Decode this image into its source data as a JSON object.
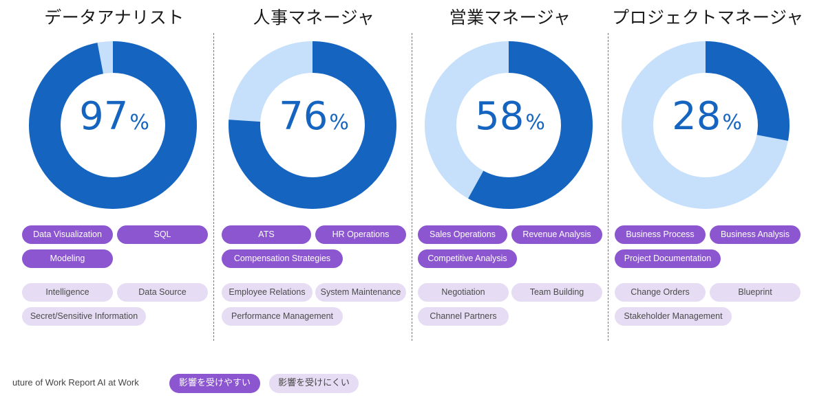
{
  "chart_data": [
    {
      "type": "pie",
      "title": "データアナリスト",
      "value": 97,
      "value_label": "97",
      "unit": "%",
      "colors": {
        "filled": "#1565c0",
        "remaining": "#c6dffa"
      },
      "skills_high": [
        "Data Visualization",
        "SQL",
        "Modeling"
      ],
      "skills_low": [
        "Intelligence",
        "Data Source",
        "Secret/Sensitive Information"
      ]
    },
    {
      "type": "pie",
      "title": "人事マネージャ",
      "value": 76,
      "value_label": "76",
      "unit": "%",
      "colors": {
        "filled": "#1565c0",
        "remaining": "#c6dffa"
      },
      "skills_high": [
        "ATS",
        "HR Operations",
        "Compensation Strategies"
      ],
      "skills_low": [
        "Employee Relations",
        "System Maintenance",
        "Performance Management"
      ]
    },
    {
      "type": "pie",
      "title": "営業マネージャ",
      "value": 58,
      "value_label": "58",
      "unit": "%",
      "colors": {
        "filled": "#1565c0",
        "remaining": "#c6dffa"
      },
      "skills_high": [
        "Sales Operations",
        "Revenue Analysis",
        "Competitive Analysis"
      ],
      "skills_low": [
        "Negotiation",
        "Team Building",
        "Channel Partners"
      ]
    },
    {
      "type": "pie",
      "title": "プロジェクトマネージャ",
      "value": 28,
      "value_label": "28",
      "unit": "%",
      "colors": {
        "filled": "#1565c0",
        "remaining": "#c6dffa"
      },
      "skills_high": [
        "Business Process",
        "Business Analysis",
        "Project Documentation"
      ],
      "skills_low": [
        "Change Orders",
        "Blueprint",
        "Stakeholder Management"
      ]
    }
  ],
  "footer": {
    "source": "uture of Work Report AI at Work",
    "legend_high": "影響を受けやすい",
    "legend_low": "影響を受けにくい",
    "legend_colors": {
      "high": "#8b56cf",
      "low": "#e6dcf4"
    }
  }
}
